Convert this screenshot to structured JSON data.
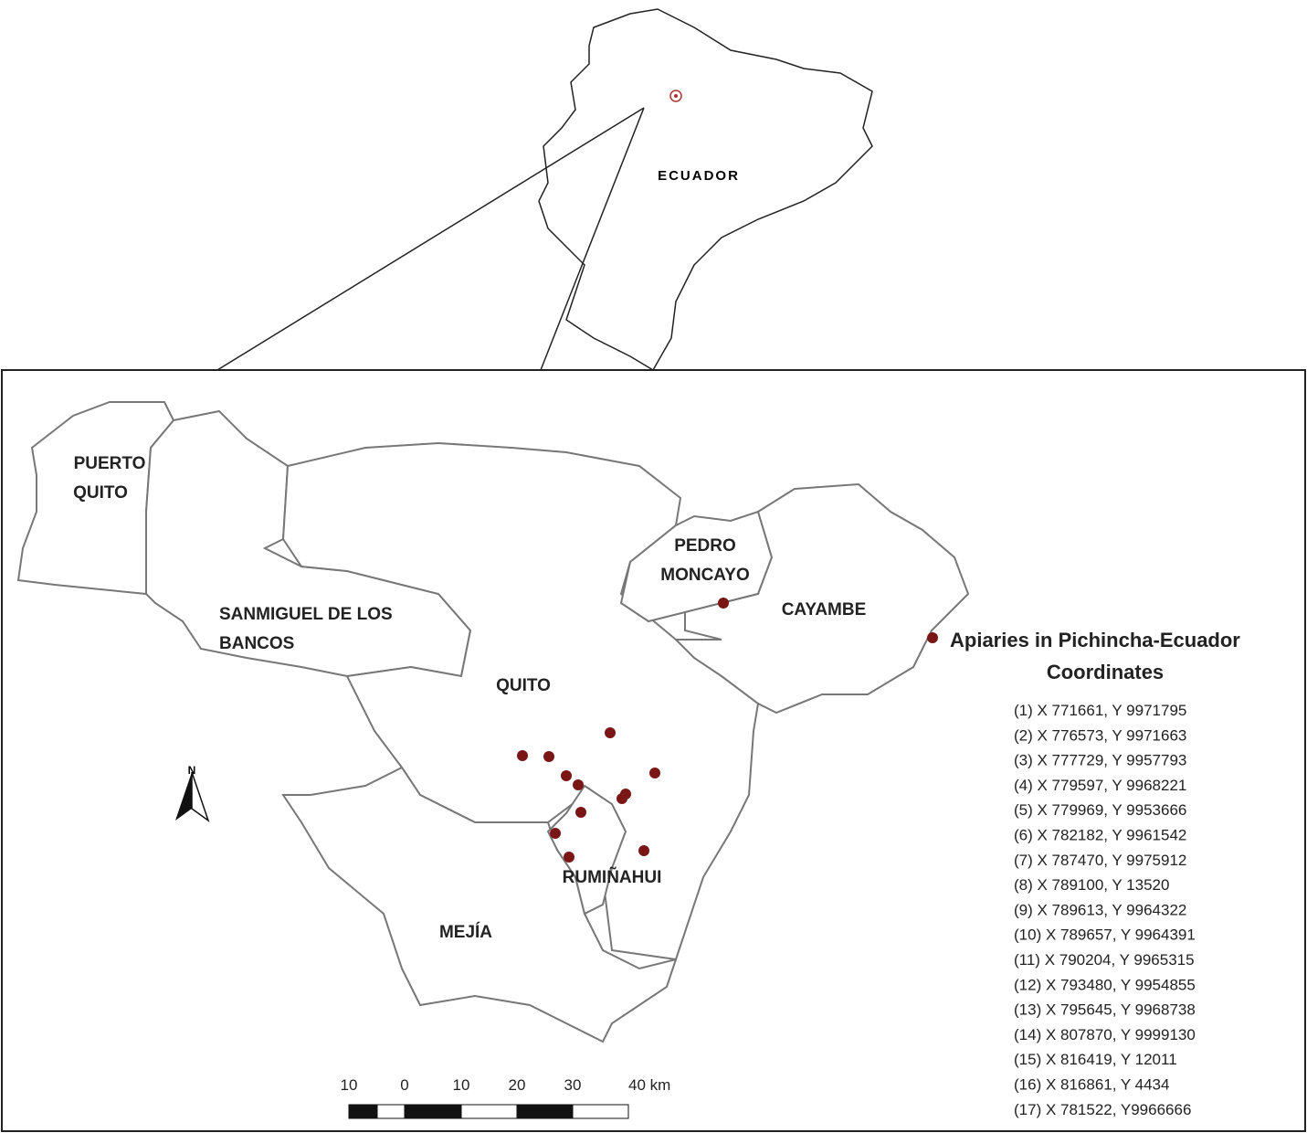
{
  "inset": {
    "country_label": "ECUADOR"
  },
  "regions": [
    {
      "lines": [
        "PUERTO",
        "QUITO"
      ]
    },
    {
      "lines": [
        "SANMIGUEL DE LOS",
        "BANCOS"
      ]
    },
    {
      "lines": [
        "QUITO"
      ]
    },
    {
      "lines": [
        "PEDRO",
        "MONCAYO"
      ]
    },
    {
      "lines": [
        "CAYAMBE"
      ]
    },
    {
      "lines": [
        "MEJÍA"
      ]
    },
    {
      "lines": [
        "RUMIÑAHUI"
      ]
    }
  ],
  "north_arrow": "N",
  "legend": {
    "title": "Apiaries in Pichincha-Ecuador",
    "subtitle": "Coordinates",
    "items": [
      "(1) X 771661, Y 9971795",
      "(2) X 776573, Y 9971663",
      "(3) X 777729, Y 9957793",
      "(4) X 779597, Y 9968221",
      "(5) X 779969, Y 9953666",
      "(6) X 782182, Y 9961542",
      "(7) X 787470, Y 9975912",
      "(8) X 789100, Y 13520",
      "(9) X 789613, Y 9964322",
      "(10) X 789657, Y 9964391",
      "(11) X 790204, Y 9965315",
      "(12) X 793480, Y 9954855",
      "(13) X 795645, Y 9968738",
      "(14) X 807870, Y 9999130",
      "(15) X 816419, Y 12011",
      "(16) X 816861, Y 4434",
      "(17) X 781522, Y9966666"
    ]
  },
  "scale_bar": {
    "labels": [
      "10",
      "0",
      "10",
      "20",
      "30",
      "40 km"
    ]
  }
}
